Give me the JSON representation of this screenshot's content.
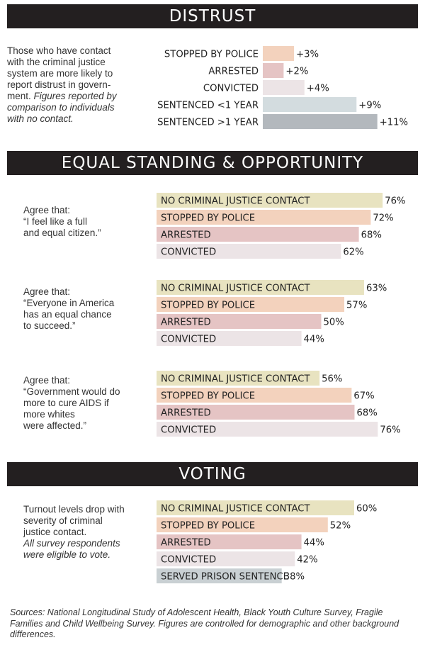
{
  "sections": {
    "distrust": {
      "title": "DISTRUST",
      "note": [
        "Those who have contact",
        "with the criminal justice",
        "system are more likely to",
        "report distrust in govern-",
        "ment."
      ],
      "note_italic": [
        "Figures reported by",
        "comparison to individuals",
        "with no contact."
      ]
    },
    "equal": {
      "title": "EQUAL STANDING & OPPORTUNITY",
      "notes": [
        [
          "Agree that:",
          "“I feel like a full",
          "and equal citizen.”"
        ],
        [
          "Agree that:",
          "“Everyone in America",
          "has an equal chance",
          "to succeed.”"
        ],
        [
          "Agree that:",
          "“Government would do",
          "more to cure AIDS if",
          "more whites",
          "were affected.”"
        ]
      ]
    },
    "voting": {
      "title": "VOTING",
      "note": [
        "Turnout levels drop with",
        "severity of criminal",
        "justice contact."
      ],
      "note_italic": [
        "All survey respondents",
        "were eligible to vote."
      ]
    }
  },
  "source": "Sources: National Longitudinal Study of Adolescent Health, Black Youth Culture Survey, Fragile Families and Child Wellbeing Survey. Figures are controlled for demographic and other background differences.",
  "colors": {
    "no_contact": "#e8e3c0",
    "stopped": "#f3d2bd",
    "arrested": "#e5c4c4",
    "convicted": "#ece4e6",
    "sentenced_short": "#d3dcdf",
    "sentenced_long": "#b3b8bd",
    "served_prison": "#c9d0d3",
    "banner": "#231f20"
  },
  "chart_data": [
    {
      "type": "bar",
      "orientation": "horizontal",
      "categories": [
        "STOPPED BY POLICE",
        "ARRESTED",
        "CONVICTED",
        "SENTENCED <1 YEAR",
        "SENTENCED >1 YEAR"
      ],
      "values": [
        3,
        2,
        4,
        9,
        11
      ],
      "value_labels": [
        "+3%",
        "+2%",
        "+4%",
        "+9%",
        "+11%"
      ],
      "color_keys": [
        "stopped",
        "arrested",
        "convicted",
        "sentenced_short",
        "sentenced_long"
      ]
    },
    {
      "type": "bar",
      "orientation": "horizontal",
      "categories": [
        "NO CRIMINAL JUSTICE CONTACT",
        "STOPPED BY POLICE",
        "ARRESTED",
        "CONVICTED"
      ],
      "values": [
        76,
        72,
        68,
        62
      ],
      "value_labels": [
        "76%",
        "72%",
        "68%",
        "62%"
      ],
      "color_keys": [
        "no_contact",
        "stopped",
        "arrested",
        "convicted"
      ]
    },
    {
      "type": "bar",
      "orientation": "horizontal",
      "categories": [
        "NO CRIMINAL JUSTICE CONTACT",
        "STOPPED BY POLICE",
        "ARRESTED",
        "CONVICTED"
      ],
      "values": [
        63,
        57,
        50,
        44
      ],
      "value_labels": [
        "63%",
        "57%",
        "50%",
        "44%"
      ],
      "color_keys": [
        "no_contact",
        "stopped",
        "arrested",
        "convicted"
      ]
    },
    {
      "type": "bar",
      "orientation": "horizontal",
      "categories": [
        "NO CRIMINAL JUSTICE CONTACT",
        "STOPPED BY POLICE",
        "ARRESTED",
        "CONVICTED"
      ],
      "values": [
        56,
        67,
        68,
        76
      ],
      "value_labels": [
        "56%",
        "67%",
        "68%",
        "76%"
      ],
      "color_keys": [
        "no_contact",
        "stopped",
        "arrested",
        "convicted"
      ]
    },
    {
      "type": "bar",
      "orientation": "horizontal",
      "categories": [
        "NO CRIMINAL JUSTICE CONTACT",
        "STOPPED BY POLICE",
        "ARRESTED",
        "CONVICTED",
        "SERVED PRISON SENTENCE"
      ],
      "values": [
        60,
        52,
        44,
        42,
        38
      ],
      "value_labels": [
        "60%",
        "52%",
        "44%",
        "42%",
        "38%"
      ],
      "color_keys": [
        "no_contact",
        "stopped",
        "arrested",
        "convicted",
        "served_prison"
      ]
    }
  ]
}
